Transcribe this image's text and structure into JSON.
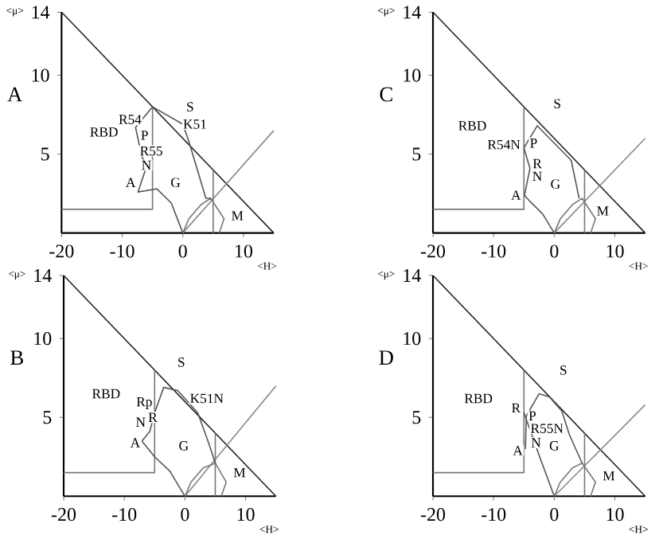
{
  "chart_data": [
    {
      "type": "line",
      "title": "A",
      "xlabel": "<H>",
      "ylabel": "<μ>",
      "xlim": [
        -20,
        15
      ],
      "ylim": [
        0,
        14
      ],
      "xticks": [
        -20,
        -10,
        0,
        10
      ],
      "yticks": [
        5,
        10,
        14
      ],
      "marker": "none",
      "series": [
        {
          "color": "#222222",
          "x": [
            -20,
            15
          ],
          "values": [
            14,
            0
          ]
        },
        {
          "color": "#888888",
          "x": [
            0,
            15
          ],
          "values": [
            0,
            6.5
          ]
        },
        {
          "color": "#777777",
          "x": [
            -20,
            -5,
            -5
          ],
          "values": [
            1.5,
            1.5,
            8
          ]
        },
        {
          "color": "#777777",
          "x": [
            5,
            5
          ],
          "values": [
            0,
            4
          ]
        },
        {
          "color": "#777777",
          "x": [
            0,
            1,
            3,
            4.6,
            6.8,
            6
          ],
          "values": [
            0,
            0.9,
            1.8,
            2.2,
            0.9,
            0
          ]
        },
        {
          "color": "#555555",
          "x": [
            -5,
            -7.8,
            -6.8,
            -6,
            -7.4,
            -4.3,
            -1.9,
            0
          ],
          "values": [
            8,
            6.7,
            4.9,
            4.2,
            2.6,
            2.8,
            1.9,
            0
          ]
        },
        {
          "color": "#555555",
          "x": [
            -5,
            0,
            1,
            3.8,
            4.6
          ],
          "values": [
            8,
            6.9,
            5.8,
            2.2,
            2.2
          ]
        }
      ],
      "annotations": [
        {
          "text": "RBD",
          "x": -13,
          "y": 6.4
        },
        {
          "text": "R54",
          "x": -8.7,
          "y": 7.2
        },
        {
          "text": "P",
          "x": -6.3,
          "y": 6.2
        },
        {
          "text": "R55",
          "x": -5.2,
          "y": 5.2
        },
        {
          "text": "N",
          "x": -6,
          "y": 4.3
        },
        {
          "text": "A",
          "x": -8.6,
          "y": 3.2
        },
        {
          "text": "G",
          "x": -1.2,
          "y": 3.2
        },
        {
          "text": "S",
          "x": 1.2,
          "y": 8
        },
        {
          "text": "K51",
          "x": 2,
          "y": 6.9
        },
        {
          "text": "M",
          "x": 9,
          "y": 1.1
        }
      ]
    },
    {
      "type": "line",
      "title": "C",
      "xlabel": "<H>",
      "ylabel": "<μ>",
      "xlim": [
        -20,
        15
      ],
      "ylim": [
        0,
        14
      ],
      "xticks": [
        -20,
        -10,
        0,
        10
      ],
      "yticks": [
        5,
        10,
        14
      ],
      "marker": "none",
      "series": [
        {
          "color": "#222222",
          "x": [
            -20,
            15
          ],
          "values": [
            14,
            0
          ]
        },
        {
          "color": "#888888",
          "x": [
            0,
            15
          ],
          "values": [
            0,
            6
          ]
        },
        {
          "color": "#777777",
          "x": [
            -20,
            -5,
            -5
          ],
          "values": [
            1.5,
            1.5,
            8
          ]
        },
        {
          "color": "#777777",
          "x": [
            5,
            5
          ],
          "values": [
            0,
            4
          ]
        },
        {
          "color": "#777777",
          "x": [
            0,
            1,
            3,
            4.6,
            6.8,
            6
          ],
          "values": [
            0,
            0.9,
            1.8,
            2.2,
            0.9,
            0
          ]
        },
        {
          "color": "#555555",
          "x": [
            -5,
            -4,
            -4.9,
            -4.5,
            -1.9,
            0
          ],
          "values": [
            5.4,
            4.1,
            2.4,
            2.2,
            1.2,
            0
          ]
        },
        {
          "color": "#555555",
          "x": [
            -5,
            -2.8,
            2.8,
            4.1
          ],
          "values": [
            5.4,
            6.8,
            4.6,
            2.2
          ]
        }
      ],
      "annotations": [
        {
          "text": "RBD",
          "x": -13.5,
          "y": 6.8
        },
        {
          "text": "R54N",
          "x": -8.3,
          "y": 5.6
        },
        {
          "text": "P",
          "x": -3.4,
          "y": 5.7
        },
        {
          "text": "R",
          "x": -2.8,
          "y": 4.4
        },
        {
          "text": "N",
          "x": -2.8,
          "y": 3.6
        },
        {
          "text": "A",
          "x": -6.3,
          "y": 2.4
        },
        {
          "text": "G",
          "x": 0.2,
          "y": 3.1
        },
        {
          "text": "S",
          "x": 0.5,
          "y": 8.2
        },
        {
          "text": "M",
          "x": 8,
          "y": 1.4
        }
      ]
    },
    {
      "type": "line",
      "title": "B",
      "xlabel": "<H>",
      "ylabel": "<μ>",
      "xlim": [
        -20,
        15
      ],
      "ylim": [
        0,
        14
      ],
      "xticks": [
        -20,
        -10,
        0,
        10
      ],
      "yticks": [
        5,
        10,
        14
      ],
      "marker": "none",
      "series": [
        {
          "color": "#222222",
          "x": [
            -20,
            15
          ],
          "values": [
            14,
            0
          ]
        },
        {
          "color": "#888888",
          "x": [
            0,
            15
          ],
          "values": [
            0,
            7
          ]
        },
        {
          "color": "#777777",
          "x": [
            -20,
            -5,
            -5
          ],
          "values": [
            1.5,
            1.5,
            8
          ]
        },
        {
          "color": "#777777",
          "x": [
            5,
            5
          ],
          "values": [
            0,
            4
          ]
        },
        {
          "color": "#777777",
          "x": [
            0,
            1,
            3,
            5,
            6.8,
            6
          ],
          "values": [
            0,
            0.9,
            1.8,
            2.1,
            0.9,
            0
          ]
        },
        {
          "color": "#555555",
          "x": [
            -7.1,
            -5.8,
            -5,
            -3.5,
            -1.2,
            2.1,
            3.8,
            5
          ],
          "values": [
            3.5,
            4.1,
            5.3,
            6.9,
            6.7,
            5.3,
            3.5,
            2.1
          ]
        },
        {
          "color": "#555555",
          "x": [
            -7.1,
            -5,
            -2.5,
            0
          ],
          "values": [
            3.5,
            2.5,
            1.6,
            0
          ]
        }
      ],
      "annotations": [
        {
          "text": "RBD",
          "x": -13,
          "y": 6.5
        },
        {
          "text": "Rp",
          "x": -6.7,
          "y": 5.9
        },
        {
          "text": "R",
          "x": -5.3,
          "y": 5
        },
        {
          "text": "N",
          "x": -7.3,
          "y": 4.7
        },
        {
          "text": "A",
          "x": -8.2,
          "y": 3.4
        },
        {
          "text": "G",
          "x": -0.2,
          "y": 3.2
        },
        {
          "text": "S",
          "x": -0.6,
          "y": 8.5
        },
        {
          "text": "K51N",
          "x": 3.6,
          "y": 6.2
        },
        {
          "text": "M",
          "x": 9,
          "y": 1.5
        }
      ]
    },
    {
      "type": "line",
      "title": "D",
      "xlabel": "<H>",
      "ylabel": "<μ>",
      "xlim": [
        -20,
        15
      ],
      "ylim": [
        0,
        14
      ],
      "xticks": [
        -20,
        -10,
        0,
        10
      ],
      "yticks": [
        5,
        10,
        14
      ],
      "marker": "none",
      "series": [
        {
          "color": "#222222",
          "x": [
            -20,
            15
          ],
          "values": [
            14,
            0
          ]
        },
        {
          "color": "#888888",
          "x": [
            0,
            15
          ],
          "values": [
            0,
            5.8
          ]
        },
        {
          "color": "#777777",
          "x": [
            -20,
            -5,
            -5
          ],
          "values": [
            1.5,
            1.5,
            8
          ]
        },
        {
          "color": "#777777",
          "x": [
            5,
            5
          ],
          "values": [
            0,
            4
          ]
        },
        {
          "color": "#777777",
          "x": [
            0,
            1,
            3,
            4.6,
            6.8,
            6
          ],
          "values": [
            0,
            0.9,
            1.8,
            2.1,
            0.9,
            0
          ]
        },
        {
          "color": "#555555",
          "x": [
            -4.75,
            -4.6,
            -2.5,
            -0.8,
            1.25,
            2.5,
            4.6
          ],
          "values": [
            3,
            5.1,
            6.5,
            6.3,
            5.4,
            3.9,
            2.1
          ]
        },
        {
          "color": "#555555",
          "x": [
            -5,
            -2.5,
            0
          ],
          "values": [
            5.3,
            2.6,
            0
          ]
        }
      ],
      "annotations": [
        {
          "text": "RBD",
          "x": -12.5,
          "y": 6.2
        },
        {
          "text": "R",
          "x": -6.3,
          "y": 5.6
        },
        {
          "text": "P",
          "x": -3.6,
          "y": 5.1
        },
        {
          "text": "R55N",
          "x": -1.2,
          "y": 4.3
        },
        {
          "text": "N",
          "x": -3,
          "y": 3.4
        },
        {
          "text": "A",
          "x": -6,
          "y": 2.9
        },
        {
          "text": "G",
          "x": 0,
          "y": 3.2
        },
        {
          "text": "S",
          "x": 1.5,
          "y": 8
        },
        {
          "text": "M",
          "x": 9,
          "y": 1.3
        }
      ]
    }
  ]
}
